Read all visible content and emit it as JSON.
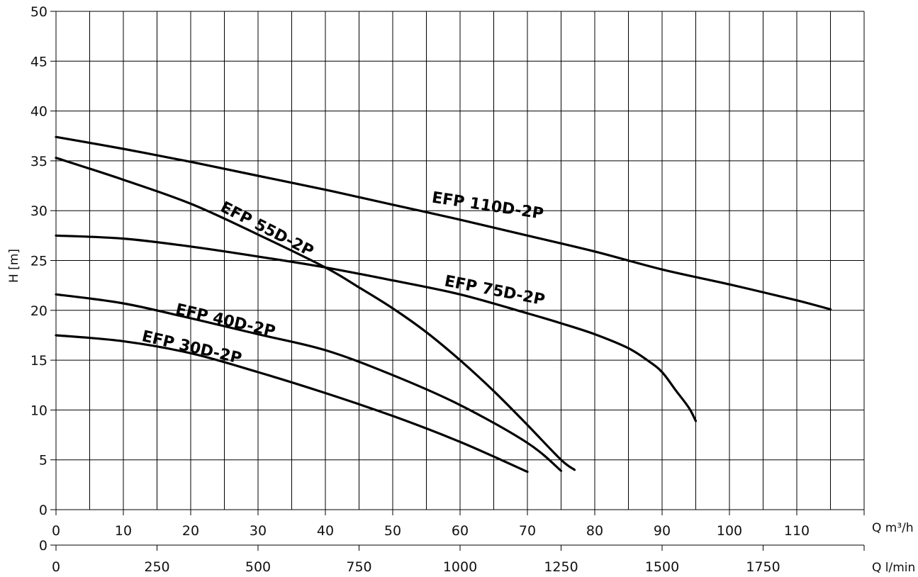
{
  "chart_data": {
    "type": "line",
    "ylabel": "H [m]",
    "xlabel": "Q m³/h",
    "xlabel_secondary": "Q l/min",
    "xlim": [
      0,
      120
    ],
    "ylim": [
      0,
      50
    ],
    "grid": true,
    "x_ticks": [
      "0",
      "10",
      "20",
      "30",
      "40",
      "50",
      "60",
      "70",
      "80",
      "90",
      "100",
      "110"
    ],
    "x_tick_values": [
      0,
      10,
      20,
      30,
      40,
      50,
      60,
      70,
      80,
      90,
      100,
      110
    ],
    "x2_ticks": [
      "0",
      "250",
      "500",
      "750",
      "1000",
      "1250",
      "1500",
      "1750"
    ],
    "x2_tick_values": [
      0,
      250,
      500,
      750,
      1000,
      1250,
      1500,
      1750
    ],
    "y_ticks": [
      "0",
      "5",
      "10",
      "15",
      "20",
      "25",
      "30",
      "35",
      "40",
      "45",
      "50"
    ],
    "y_tick_values": [
      0,
      5,
      10,
      15,
      20,
      25,
      30,
      35,
      40,
      45,
      50
    ],
    "x_minor_grid_step": 5,
    "series": [
      {
        "name": "EFP 110D-2P",
        "points": [
          [
            0,
            37.4
          ],
          [
            10,
            36.2
          ],
          [
            20,
            34.9
          ],
          [
            30,
            33.5
          ],
          [
            40,
            32.1
          ],
          [
            50,
            30.6
          ],
          [
            60,
            29.1
          ],
          [
            70,
            27.5
          ],
          [
            80,
            25.9
          ],
          [
            90,
            24.1
          ],
          [
            100,
            22.6
          ],
          [
            110,
            21.0
          ],
          [
            115,
            20.1
          ]
        ]
      },
      {
        "name": "EFP 55D-2P",
        "points": [
          [
            0,
            35.3
          ],
          [
            10,
            33.1
          ],
          [
            20,
            30.7
          ],
          [
            30,
            27.6
          ],
          [
            40,
            24.3
          ],
          [
            45,
            22.3
          ],
          [
            50,
            20.2
          ],
          [
            55,
            17.8
          ],
          [
            60,
            15.0
          ],
          [
            65,
            11.9
          ],
          [
            70,
            8.5
          ],
          [
            75,
            5.0
          ],
          [
            77,
            4.0
          ]
        ]
      },
      {
        "name": "EFP 75D-2P",
        "points": [
          [
            0,
            27.5
          ],
          [
            10,
            27.2
          ],
          [
            20,
            26.4
          ],
          [
            30,
            25.4
          ],
          [
            40,
            24.3
          ],
          [
            50,
            23.0
          ],
          [
            60,
            21.6
          ],
          [
            70,
            19.7
          ],
          [
            75,
            18.7
          ],
          [
            80,
            17.6
          ],
          [
            85,
            16.2
          ],
          [
            88,
            14.9
          ],
          [
            90,
            13.8
          ],
          [
            92,
            12.0
          ],
          [
            94,
            10.2
          ],
          [
            95,
            8.9
          ]
        ]
      },
      {
        "name": "EFP 40D-2P",
        "points": [
          [
            0,
            21.6
          ],
          [
            10,
            20.7
          ],
          [
            20,
            19.2
          ],
          [
            30,
            17.6
          ],
          [
            40,
            16.0
          ],
          [
            50,
            13.5
          ],
          [
            60,
            10.5
          ],
          [
            70,
            6.7
          ],
          [
            75,
            3.9
          ]
        ]
      },
      {
        "name": "EFP 30D-2P",
        "points": [
          [
            0,
            17.5
          ],
          [
            10,
            16.9
          ],
          [
            20,
            15.7
          ],
          [
            30,
            13.8
          ],
          [
            40,
            11.7
          ],
          [
            50,
            9.4
          ],
          [
            60,
            6.8
          ],
          [
            70,
            3.8
          ]
        ]
      }
    ],
    "annotations": [
      {
        "text": "EFP 110D-2P",
        "x": 64,
        "y": 30.0,
        "angle": 8.5
      },
      {
        "text": "EFP 55D-2P",
        "x": 31,
        "y": 27.7,
        "angle": 27
      },
      {
        "text": "EFP 75D-2P",
        "x": 65,
        "y": 21.5,
        "angle": 11
      },
      {
        "text": "EFP 40D-2P",
        "x": 25,
        "y": 18.5,
        "angle": 13
      },
      {
        "text": "EFP 30D-2P",
        "x": 20,
        "y": 15.8,
        "angle": 13
      }
    ]
  }
}
